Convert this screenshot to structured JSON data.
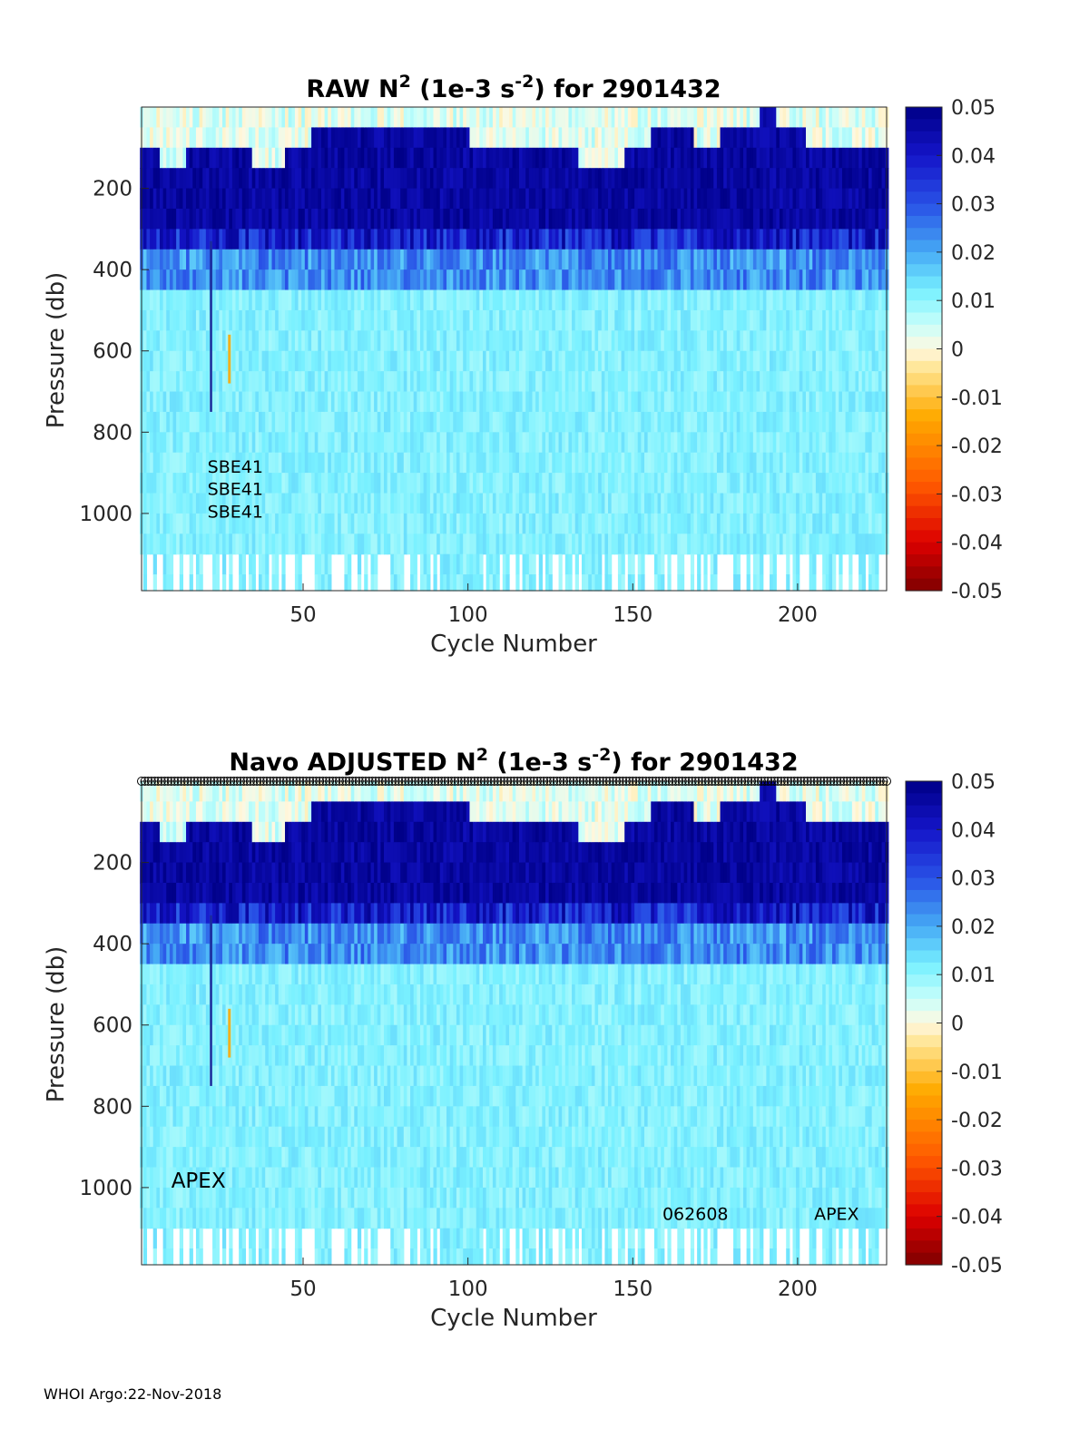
{
  "footer": "WHOI Argo:22-Nov-2018",
  "colors": {
    "ocean_dark": "#00008f",
    "ocean_mid": "#1f2fd0",
    "ocean_light": "#7fefff",
    "zero": "#fff7d6",
    "neg_strong": "#800000"
  },
  "chart_data": [
    {
      "type": "heatmap",
      "title": {
        "pre": "RAW N",
        "sup1": "2",
        "mid": " (1e-3 s",
        "sup2": "-2",
        "post": ") for 2901432"
      },
      "xlabel": "Cycle Number",
      "ylabel": "Pressure (db)",
      "xlim": [
        1,
        227
      ],
      "ylim": [
        1190,
        0
      ],
      "xticks": [
        50,
        100,
        150,
        200
      ],
      "yticks": [
        200,
        400,
        600,
        800,
        1000
      ],
      "colorbar": {
        "range": [
          -0.05,
          0.05
        ],
        "ticks": [
          "0.05",
          "0.04",
          "0.03",
          "0.02",
          "0.01",
          "0",
          "-0.01",
          "-0.02",
          "-0.03",
          "-0.04",
          "-0.05"
        ]
      },
      "annotations": [
        {
          "text": "SBE41",
          "x": 21,
          "y": 900
        },
        {
          "text": "SBE41",
          "x": 21,
          "y": 955
        },
        {
          "text": "SBE41",
          "x": 21,
          "y": 1010
        }
      ],
      "profile_markers": false
    },
    {
      "type": "heatmap",
      "title": {
        "pre": "Navo  ADJUSTED N",
        "sup1": "2",
        "mid": " (1e-3 s",
        "sup2": "-2",
        "post": ") for 2901432"
      },
      "xlabel": "Cycle Number",
      "ylabel": "Pressure (db)",
      "xlim": [
        1,
        227
      ],
      "ylim": [
        1190,
        0
      ],
      "xticks": [
        50,
        100,
        150,
        200
      ],
      "yticks": [
        200,
        400,
        600,
        800,
        1000
      ],
      "colorbar": {
        "range": [
          -0.05,
          0.05
        ],
        "ticks": [
          "0.05",
          "0.04",
          "0.03",
          "0.02",
          "0.01",
          "0",
          "-0.01",
          "-0.02",
          "-0.03",
          "-0.04",
          "-0.05"
        ]
      },
      "annotations": [
        {
          "text": "APEX",
          "x": 10,
          "y": 1000,
          "size": "big"
        },
        {
          "text": "062608",
          "x": 159,
          "y": 1080
        },
        {
          "text": "APEX",
          "x": 205,
          "y": 1080
        }
      ],
      "profile_markers": true
    }
  ]
}
